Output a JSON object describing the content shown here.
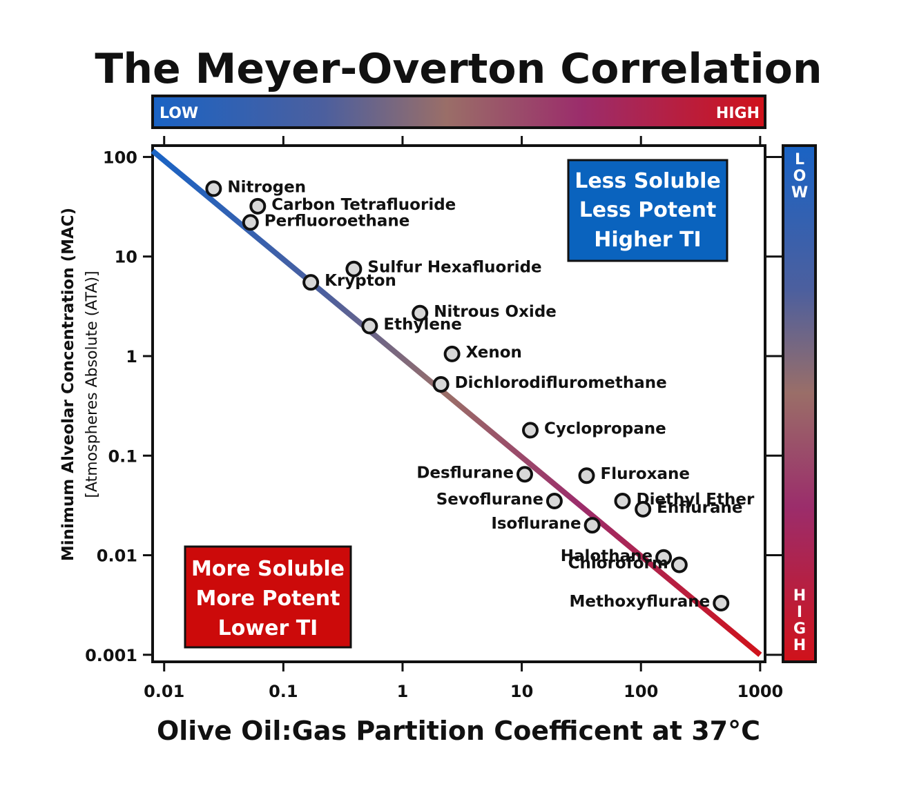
{
  "chart_data": {
    "type": "scatter",
    "title": "The Meyer-Overton Correlation",
    "xlabel": "Olive Oil:Gas Partition Coefficent at 37°C",
    "ylabel": "Minimum Alveolar Concentration (MAC)",
    "ylabel_sub": "[Atmospheres Absolute (ATA)]",
    "xscale": "log",
    "yscale": "log",
    "xlim": [
      0.008,
      1100
    ],
    "ylim": [
      0.00085,
      130
    ],
    "xticks": [
      {
        "value": 0.01,
        "label": "0.01"
      },
      {
        "value": 0.1,
        "label": "0.1"
      },
      {
        "value": 1,
        "label": "1"
      },
      {
        "value": 10,
        "label": "10"
      },
      {
        "value": 100,
        "label": "100"
      },
      {
        "value": 1000,
        "label": "1000"
      }
    ],
    "yticks": [
      {
        "value": 100,
        "label": "100"
      },
      {
        "value": 10,
        "label": "10"
      },
      {
        "value": 1,
        "label": "1"
      },
      {
        "value": 0.1,
        "label": "0.1"
      },
      {
        "value": 0.01,
        "label": "0.01"
      },
      {
        "value": 0.001,
        "label": "0.001"
      }
    ],
    "trend_line": {
      "x": [
        0.008,
        1000
      ],
      "y": [
        115,
        0.001
      ]
    },
    "points": [
      {
        "name": "Nitrogen",
        "x": 0.026,
        "y": 48,
        "label_side": "right"
      },
      {
        "name": "Carbon Tetrafluoride",
        "x": 0.061,
        "y": 32,
        "label_side": "right"
      },
      {
        "name": "Perfluoroethane",
        "x": 0.053,
        "y": 22,
        "label_side": "right"
      },
      {
        "name": "Sulfur Hexafluoride",
        "x": 0.39,
        "y": 7.5,
        "label_side": "right"
      },
      {
        "name": "Krypton",
        "x": 0.17,
        "y": 5.5,
        "label_side": "right"
      },
      {
        "name": "Nitrous Oxide",
        "x": 1.4,
        "y": 2.7,
        "label_side": "right"
      },
      {
        "name": "Ethylene",
        "x": 0.53,
        "y": 2.0,
        "label_side": "right"
      },
      {
        "name": "Xenon",
        "x": 2.6,
        "y": 1.05,
        "label_side": "right"
      },
      {
        "name": "Dichlorodifluromethane",
        "x": 2.1,
        "y": 0.52,
        "label_side": "right"
      },
      {
        "name": "Cyclopropane",
        "x": 11.8,
        "y": 0.18,
        "label_side": "right"
      },
      {
        "name": "Desflurane",
        "x": 10.6,
        "y": 0.065,
        "label_side": "left"
      },
      {
        "name": "Fluroxane",
        "x": 35,
        "y": 0.063,
        "label_side": "right"
      },
      {
        "name": "Sevoflurane",
        "x": 18.8,
        "y": 0.035,
        "label_side": "left"
      },
      {
        "name": "Diethyl Ether",
        "x": 70,
        "y": 0.035,
        "label_side": "right"
      },
      {
        "name": "Enflurane",
        "x": 104,
        "y": 0.029,
        "label_side": "right"
      },
      {
        "name": "Isoflurane",
        "x": 39,
        "y": 0.02,
        "label_side": "left"
      },
      {
        "name": "Halothane",
        "x": 155,
        "y": 0.0095,
        "label_side": "left"
      },
      {
        "name": "Chloroform",
        "x": 210,
        "y": 0.008,
        "label_side": "left"
      },
      {
        "name": "Methoxyflurane",
        "x": 470,
        "y": 0.0033,
        "label_side": "left"
      }
    ],
    "top_colorbar": {
      "low": "LOW",
      "high": "HIGH"
    },
    "right_colorbar": {
      "low": "LOW",
      "high": "HIGH"
    },
    "annotations": {
      "top_right": [
        "Less Soluble",
        "Less Potent",
        "Higher TI"
      ],
      "bottom_left": [
        "More Soluble",
        "More Potent",
        "Lower TI"
      ]
    },
    "colors": {
      "blue": "#1a63c4",
      "mid": "#9a6e68",
      "magenta": "#9b2d6b",
      "red": "#d0121a",
      "box_blue": "#0a63be",
      "box_red": "#cc0a0a",
      "marker_fill": "#d8d8d8"
    },
    "grid": false
  }
}
